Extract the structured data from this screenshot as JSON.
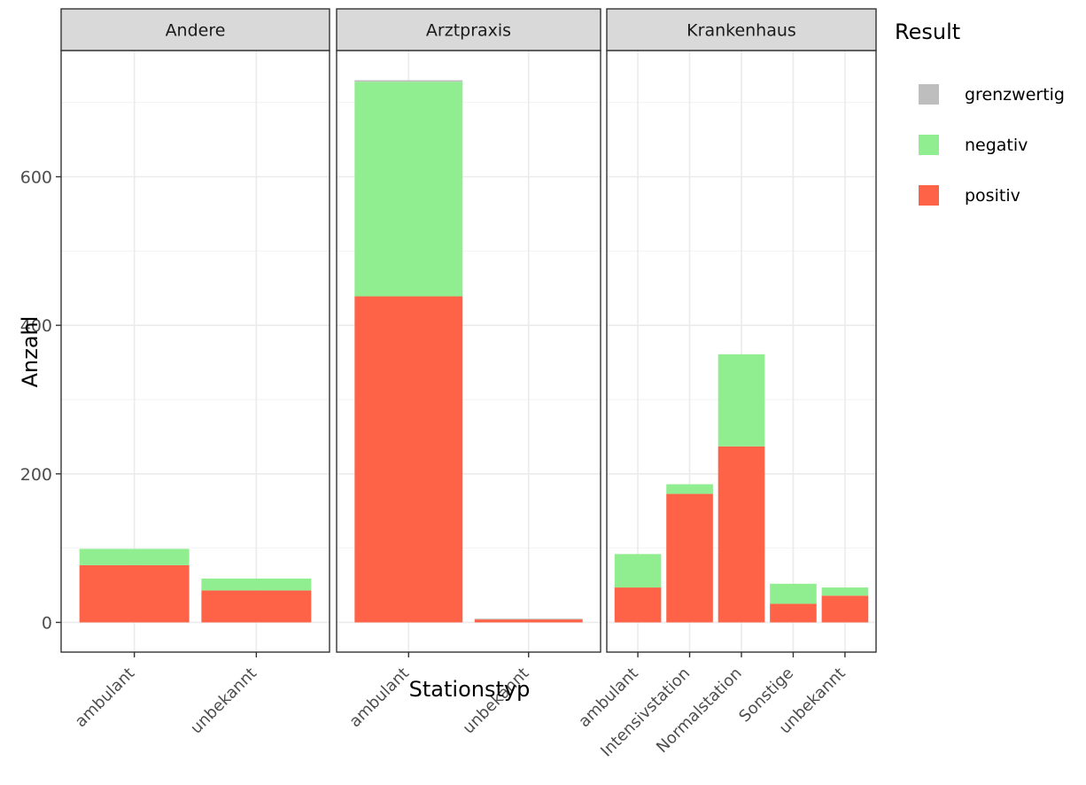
{
  "chart_data": {
    "type": "bar",
    "stacked": true,
    "xlabel": "Stationstyp",
    "ylabel": "Anzahl",
    "ylim": [
      -40,
      770
    ],
    "yticks": [
      0,
      200,
      400,
      600
    ],
    "ytick_labels": [
      "0",
      "200",
      "400",
      "600"
    ],
    "grid": true,
    "legend": {
      "title": "Result",
      "placement": "right",
      "entries": [
        {
          "name": "grenzwertig",
          "color": "#BEBEBE"
        },
        {
          "name": "negativ",
          "color": "#90EE90"
        },
        {
          "name": "positiv",
          "color": "#FF6347"
        }
      ]
    },
    "stack_order": [
      "positiv",
      "negativ",
      "grenzwertig"
    ],
    "colors": {
      "grenzwertig": "#BEBEBE",
      "negativ": "#90EE90",
      "positiv": "#FF6347"
    },
    "facets": [
      {
        "label": "Andere",
        "categories": [
          "ambulant",
          "unbekannt"
        ],
        "series": [
          {
            "name": "positiv",
            "values": [
              77,
              43
            ]
          },
          {
            "name": "negativ",
            "values": [
              22,
              16
            ]
          },
          {
            "name": "grenzwertig",
            "values": [
              0,
              0
            ]
          }
        ]
      },
      {
        "label": "Arztpraxis",
        "categories": [
          "ambulant",
          "unbekannt"
        ],
        "series": [
          {
            "name": "positiv",
            "values": [
              439,
              4
            ]
          },
          {
            "name": "negativ",
            "values": [
              289,
              0
            ]
          },
          {
            "name": "grenzwertig",
            "values": [
              2,
              1
            ]
          }
        ]
      },
      {
        "label": "Krankenhaus",
        "categories": [
          "ambulant",
          "Intensivstation",
          "Normalstation",
          "Sonstige",
          "unbekannt"
        ],
        "series": [
          {
            "name": "positiv",
            "values": [
              47,
              173,
              237,
              25,
              36
            ]
          },
          {
            "name": "negativ",
            "values": [
              45,
              13,
              124,
              27,
              11
            ]
          },
          {
            "name": "grenzwertig",
            "values": [
              0,
              0,
              0,
              0,
              0
            ]
          }
        ]
      }
    ]
  }
}
